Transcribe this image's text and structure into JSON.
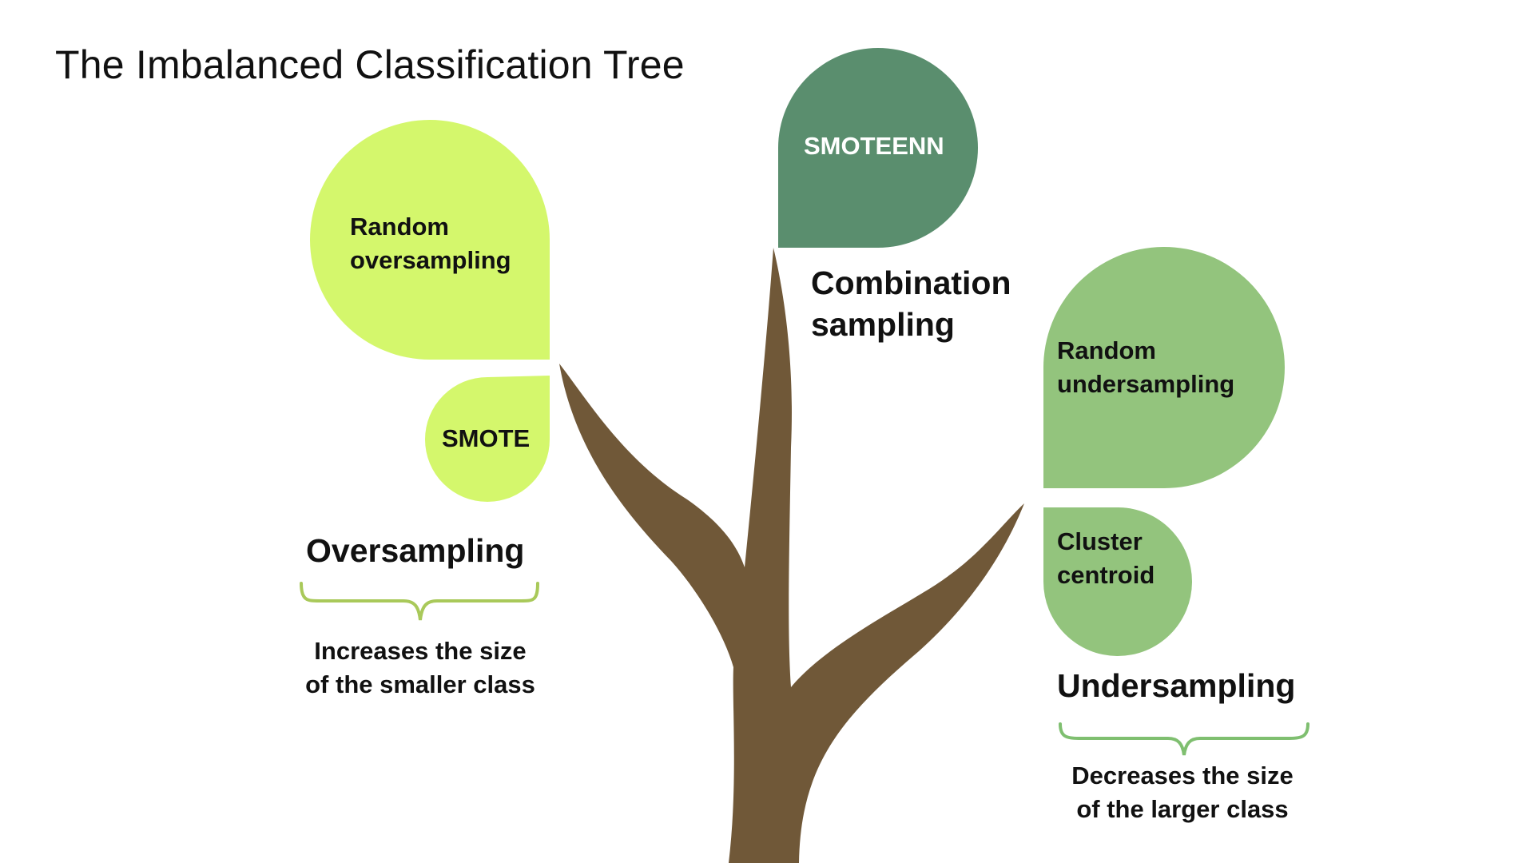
{
  "title": "The Imbalanced Classification Tree",
  "colors": {
    "trunk": "#705838",
    "oversampling_leaf": "#d4f76c",
    "combination_leaf": "#5a8e6e",
    "undersampling_leaf": "#93c47d",
    "oversampling_brace": "#a9c95a",
    "undersampling_brace": "#7fbf70"
  },
  "branches": {
    "oversampling": {
      "label": "Oversampling",
      "leaves": [
        {
          "lines": [
            "Random",
            "oversampling"
          ]
        },
        {
          "lines": [
            "SMOTE"
          ]
        }
      ],
      "description": [
        "Increases the size",
        "of the smaller class"
      ]
    },
    "combination": {
      "label": [
        "Combination",
        "sampling"
      ],
      "leaves": [
        {
          "lines": [
            "SMOTEENN"
          ]
        }
      ]
    },
    "undersampling": {
      "label": "Undersampling",
      "leaves": [
        {
          "lines": [
            "Random",
            "undersampling"
          ]
        },
        {
          "lines": [
            "Cluster",
            "centroid"
          ]
        }
      ],
      "description": [
        "Decreases the size",
        "of the larger class"
      ]
    }
  }
}
